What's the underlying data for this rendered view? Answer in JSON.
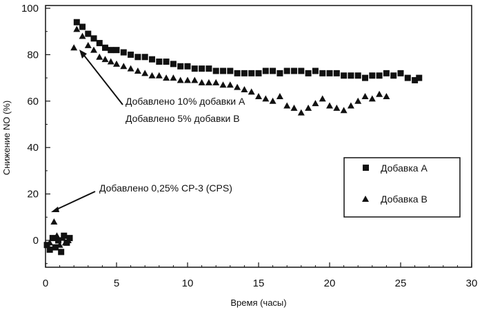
{
  "chart_data": {
    "type": "scatter",
    "xlabel": "Время (часы)",
    "ylabel": "Снижение NO (%)",
    "xlim": [
      0,
      30
    ],
    "ylim": [
      -10,
      100
    ],
    "xticks": [
      0,
      5,
      10,
      15,
      20,
      25,
      30
    ],
    "yticks": [
      0,
      20,
      40,
      60,
      80,
      100
    ],
    "grid": false,
    "legend_position": "right",
    "series": [
      {
        "name": "Добавка А",
        "marker": "square",
        "color": "#111111",
        "x": [
          0.1,
          0.3,
          0.5,
          0.7,
          0.9,
          1.1,
          1.3,
          1.5,
          1.7,
          2.2,
          2.6,
          3.0,
          3.4,
          3.8,
          4.2,
          4.6,
          5.0,
          5.5,
          6.0,
          6.5,
          7.0,
          7.5,
          8.0,
          8.5,
          9.0,
          9.5,
          10.0,
          10.5,
          11.0,
          11.5,
          12.0,
          12.5,
          13.0,
          13.5,
          14.0,
          14.5,
          15.0,
          15.5,
          16.0,
          16.5,
          17.0,
          17.5,
          18.0,
          18.5,
          19.0,
          19.5,
          20.0,
          20.5,
          21.0,
          21.5,
          22.0,
          22.5,
          23.0,
          23.5,
          24.0,
          24.5,
          25.0,
          25.5,
          26.0,
          26.3
        ],
        "y": [
          -2,
          -4,
          1,
          -3,
          0,
          -5,
          2,
          -1,
          1,
          94,
          92,
          89,
          87,
          85,
          83,
          82,
          82,
          81,
          80,
          79,
          79,
          78,
          77,
          77,
          76,
          75,
          75,
          74,
          74,
          74,
          73,
          73,
          73,
          72,
          72,
          72,
          72,
          73,
          73,
          72,
          73,
          73,
          73,
          72,
          73,
          72,
          72,
          72,
          71,
          71,
          71,
          70,
          71,
          71,
          72,
          71,
          72,
          70,
          69,
          70
        ]
      },
      {
        "name": "Добавка В",
        "marker": "triangle",
        "color": "#111111",
        "x": [
          0.3,
          0.6,
          0.8,
          1.0,
          1.2,
          1.4,
          1.6,
          2.0,
          2.2,
          2.6,
          3.0,
          3.4,
          3.8,
          4.2,
          4.6,
          5.0,
          5.5,
          6.0,
          6.5,
          7.0,
          7.5,
          8.0,
          8.5,
          9.0,
          9.5,
          10.0,
          10.5,
          11.0,
          11.5,
          12.0,
          12.5,
          13.0,
          13.5,
          14.0,
          14.5,
          15.0,
          15.5,
          16.0,
          16.5,
          17.0,
          17.5,
          18.0,
          18.5,
          19.0,
          19.5,
          20.0,
          20.5,
          21.0,
          21.5,
          22.0,
          22.5,
          23.0,
          23.5,
          24.0
        ],
        "y": [
          -1,
          8,
          2,
          -2,
          1,
          -1,
          0,
          83,
          91,
          88,
          84,
          82,
          79,
          78,
          77,
          76,
          75,
          74,
          73,
          72,
          71,
          71,
          70,
          70,
          69,
          69,
          69,
          68,
          68,
          68,
          67,
          67,
          66,
          65,
          64,
          62,
          61,
          60,
          62,
          58,
          57,
          55,
          57,
          59,
          61,
          58,
          57,
          56,
          58,
          60,
          62,
          61,
          63,
          62
        ]
      }
    ],
    "annotations": [
      {
        "lines": [
          "Добавлено 10% добавки А",
          "Добавлено 5% добавки В"
        ],
        "point": [
          2.2,
          84
        ]
      },
      {
        "lines": [
          "Добавлено 0,25% СР-3 (CPS)"
        ],
        "point": [
          0.3,
          12
        ]
      }
    ]
  }
}
